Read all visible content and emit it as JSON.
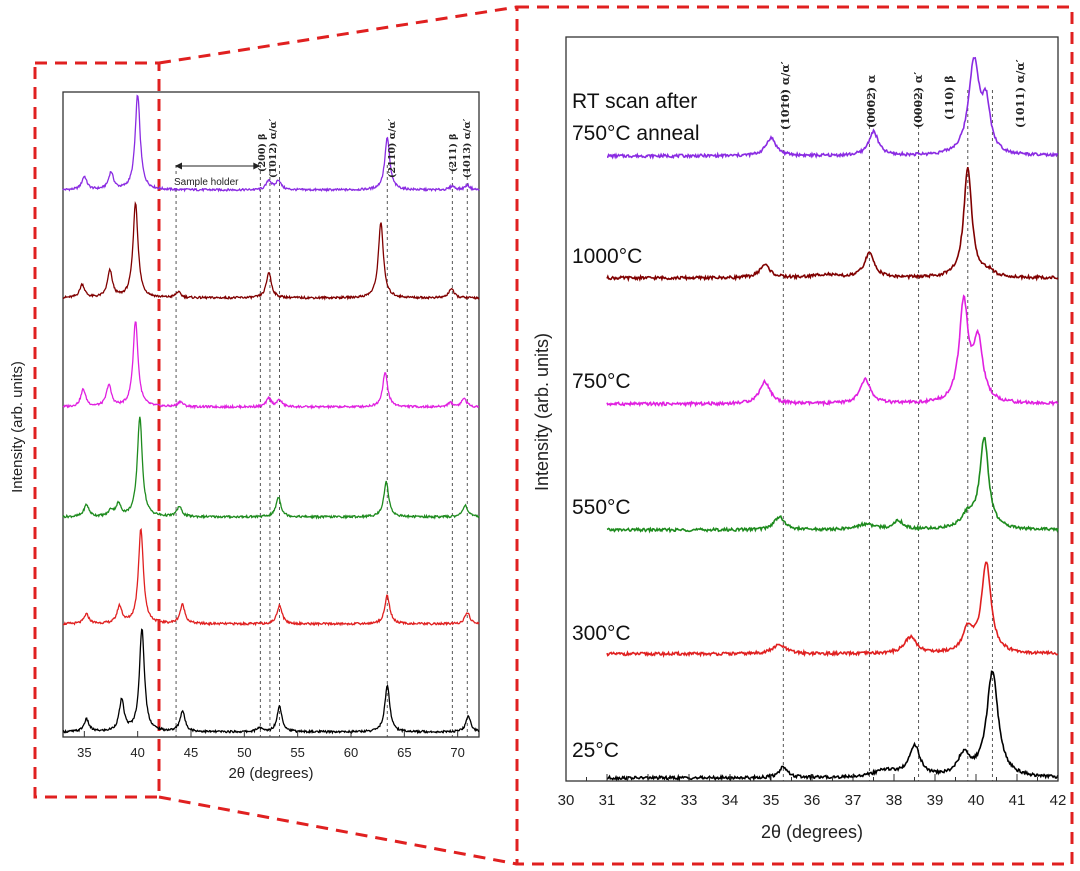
{
  "chart_data": [
    {
      "type": "line",
      "title": "",
      "xlabel": "2θ (degrees)",
      "ylabel": "Intensity (arb. units)",
      "xlim": [
        33,
        72
      ],
      "x_ticks": [
        "35",
        "40",
        "45",
        "50",
        "55",
        "60",
        "65",
        "70"
      ],
      "annotation_sample_holder": "Sample holder",
      "sample_holder_range": [
        43.5,
        51.5
      ],
      "peak_lines": [
        {
          "x": 43.6,
          "label": ""
        },
        {
          "x": 51.5,
          "label": ""
        },
        {
          "x": 52.4,
          "label": "(200) β"
        },
        {
          "x": 53.3,
          "label": "(1012) α/α′"
        },
        {
          "x": 63.4,
          "label": "(2110) α/α′"
        },
        {
          "x": 69.5,
          "label": "(211) β"
        },
        {
          "x": 70.9,
          "label": "(1013) α/α′"
        }
      ],
      "series": [
        {
          "name": "RT scan after 750°C anneal",
          "color": "#8a2be2",
          "peaks": [
            [
              35,
              0.14
            ],
            [
              37.5,
              0.18
            ],
            [
              40,
              1.0
            ],
            [
              52.3,
              0.1
            ],
            [
              53.2,
              0.1
            ],
            [
              63.4,
              0.55
            ],
            [
              69.5,
              0.04
            ],
            [
              70.9,
              0.05
            ]
          ]
        },
        {
          "name": "1000°C",
          "color": "#800000",
          "peaks": [
            [
              34.8,
              0.14
            ],
            [
              37.4,
              0.28
            ],
            [
              39.8,
              1.0
            ],
            [
              43.8,
              0.06
            ],
            [
              52.3,
              0.27
            ],
            [
              62.8,
              0.8
            ],
            [
              69.4,
              0.1
            ]
          ]
        },
        {
          "name": "750°C",
          "color": "#e020e0",
          "peaks": [
            [
              34.9,
              0.2
            ],
            [
              37.3,
              0.25
            ],
            [
              39.8,
              1.0
            ],
            [
              44,
              0.06
            ],
            [
              52.3,
              0.1
            ],
            [
              53.3,
              0.08
            ],
            [
              63.2,
              0.4
            ],
            [
              69.3,
              0.05
            ],
            [
              70.6,
              0.1
            ]
          ]
        },
        {
          "name": "550°C",
          "color": "#1e8b1e",
          "peaks": [
            [
              35.2,
              0.12
            ],
            [
              37.5,
              0.06
            ],
            [
              38.2,
              0.12
            ],
            [
              40.2,
              1.0
            ],
            [
              43.9,
              0.1
            ],
            [
              53.2,
              0.2
            ],
            [
              63.3,
              0.35
            ],
            [
              70.7,
              0.12
            ]
          ]
        },
        {
          "name": "300°C",
          "color": "#e02020",
          "peaks": [
            [
              35.2,
              0.1
            ],
            [
              38.3,
              0.18
            ],
            [
              40.3,
              1.0
            ],
            [
              44.2,
              0.2
            ],
            [
              53.3,
              0.2
            ],
            [
              63.4,
              0.3
            ],
            [
              70.9,
              0.12
            ]
          ]
        },
        {
          "name": "25°C",
          "color": "#000000",
          "peaks": [
            [
              35.2,
              0.12
            ],
            [
              38.5,
              0.3
            ],
            [
              40.4,
              1.0
            ],
            [
              44.2,
              0.2
            ],
            [
              51.4,
              0.04
            ],
            [
              53.3,
              0.25
            ],
            [
              63.4,
              0.45
            ],
            [
              71,
              0.15
            ]
          ]
        }
      ]
    },
    {
      "type": "line",
      "title": "",
      "xlabel": "2θ (degrees)",
      "ylabel": "Intensity (arb. units)",
      "xlim": [
        30,
        42
      ],
      "x_ticks": [
        "30",
        "31",
        "32",
        "33",
        "34",
        "35",
        "36",
        "37",
        "38",
        "39",
        "40",
        "41",
        "42"
      ],
      "peak_lines": [
        {
          "x": 35.3,
          "label": "(1010) α/α′"
        },
        {
          "x": 37.4,
          "label": "(0002) α"
        },
        {
          "x": 38.6,
          "label": "(0002) α′"
        },
        {
          "x": 39.8,
          "label": "(110) β"
        },
        {
          "x": 40.4,
          "label": "(1011) α/α′"
        }
      ],
      "series": [
        {
          "name": "RT scan after 750°C anneal",
          "label_line1": "RT scan after",
          "label_line2": "750°C anneal",
          "color": "#8a2be2",
          "peaks": [
            [
              35,
              0.12,
              0.15
            ],
            [
              37.5,
              0.16,
              0.14
            ],
            [
              39.95,
              0.62,
              0.16
            ],
            [
              40.25,
              0.3,
              0.12
            ]
          ]
        },
        {
          "name": "1000°C",
          "label": "1000°C",
          "color": "#800000",
          "peaks": [
            [
              34.85,
              0.12,
              0.15
            ],
            [
              36.3,
              0.03,
              0.3
            ],
            [
              37.4,
              0.22,
              0.15
            ],
            [
              39.8,
              1.0,
              0.12
            ],
            [
              40.3,
              0.05,
              0.15
            ]
          ]
        },
        {
          "name": "750°C",
          "label": "750°C",
          "color": "#e020e0",
          "peaks": [
            [
              34.85,
              0.2,
              0.16
            ],
            [
              37.3,
              0.22,
              0.15
            ],
            [
              39.7,
              0.9,
              0.13
            ],
            [
              40.05,
              0.55,
              0.14
            ]
          ]
        },
        {
          "name": "550°C",
          "label": "550°C",
          "color": "#1e8b1e",
          "peaks": [
            [
              35.2,
              0.12,
              0.15
            ],
            [
              37.3,
              0.05,
              0.25
            ],
            [
              38.1,
              0.08,
              0.15
            ],
            [
              39.8,
              0.12,
              0.2
            ],
            [
              40.2,
              0.82,
              0.13
            ]
          ]
        },
        {
          "name": "300°C",
          "label": "300°C",
          "color": "#e02020",
          "peaks": [
            [
              35.2,
              0.08,
              0.2
            ],
            [
              38.4,
              0.15,
              0.18
            ],
            [
              39.8,
              0.2,
              0.15
            ],
            [
              40.25,
              0.82,
              0.14
            ]
          ]
        },
        {
          "name": "25°C",
          "label": "25°C",
          "color": "#000000",
          "peaks": [
            [
              35.3,
              0.08,
              0.12
            ],
            [
              37.8,
              0.05,
              0.35
            ],
            [
              38.5,
              0.22,
              0.16
            ],
            [
              39.7,
              0.15,
              0.18
            ],
            [
              40.4,
              0.75,
              0.17
            ]
          ]
        }
      ]
    }
  ],
  "zoom_indicator": {
    "color": "#e02020",
    "from_range": [
      33,
      42.5
    ],
    "style": "dashed"
  }
}
